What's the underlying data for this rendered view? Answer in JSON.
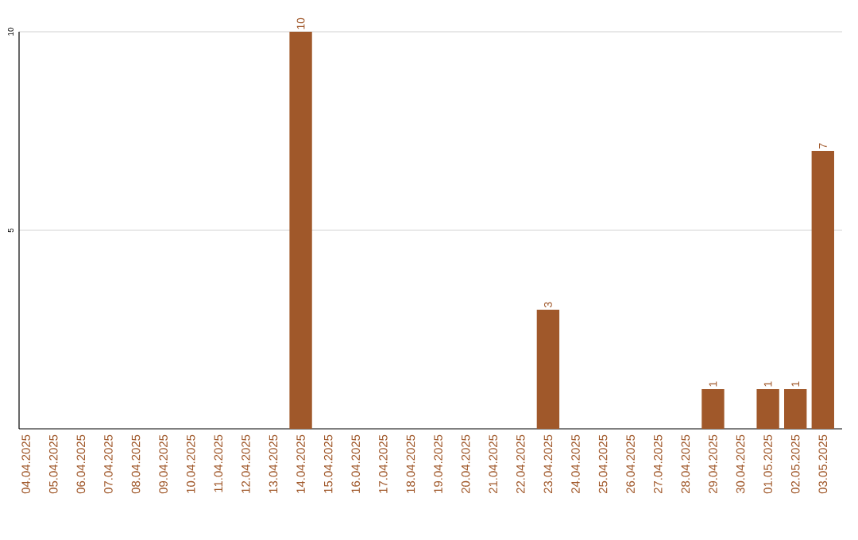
{
  "chart_data": {
    "type": "bar",
    "categories": [
      "04.04.2025",
      "05.04.2025",
      "06.04.2025",
      "07.04.2025",
      "08.04.2025",
      "09.04.2025",
      "10.04.2025",
      "11.04.2025",
      "12.04.2025",
      "13.04.2025",
      "14.04.2025",
      "15.04.2025",
      "16.04.2025",
      "17.04.2025",
      "18.04.2025",
      "19.04.2025",
      "20.04.2025",
      "21.04.2025",
      "22.04.2025",
      "23.04.2025",
      "24.04.2025",
      "25.04.2025",
      "26.04.2025",
      "27.04.2025",
      "28.04.2025",
      "29.04.2025",
      "30.04.2025",
      "01.05.2025",
      "02.05.2025",
      "03.05.2025"
    ],
    "values": [
      0,
      0,
      0,
      0,
      0,
      0,
      0,
      0,
      0,
      0,
      10,
      0,
      0,
      0,
      0,
      0,
      0,
      0,
      0,
      3,
      0,
      0,
      0,
      0,
      0,
      1,
      0,
      1,
      1,
      7
    ],
    "value_labels": [
      null,
      null,
      null,
      null,
      null,
      null,
      null,
      null,
      null,
      null,
      "10",
      null,
      null,
      null,
      null,
      null,
      null,
      null,
      null,
      "3",
      null,
      null,
      null,
      null,
      null,
      "1",
      null,
      "1",
      "1",
      "7"
    ],
    "color": "#a0582a",
    "ylim": [
      0,
      10
    ],
    "yticks": [
      5,
      10
    ],
    "grid": "y"
  }
}
